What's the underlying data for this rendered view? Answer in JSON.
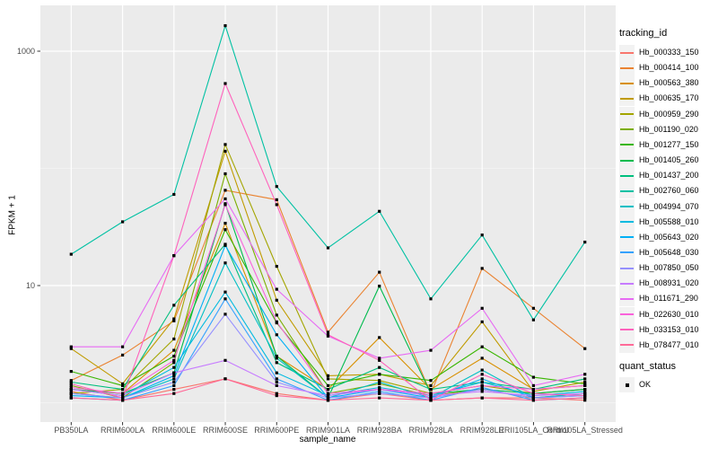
{
  "chart_data": {
    "type": "line",
    "title": "",
    "xlabel": "sample_name",
    "ylabel": "FPKM + 1",
    "y_scale": "log10",
    "y_breaks": [
      {
        "value": 10,
        "label": "10"
      },
      {
        "value": 1000,
        "label": "1000"
      }
    ],
    "y_minor_breaks": [
      1,
      100
    ],
    "ylim_log": [
      0.68,
      2370
    ],
    "grid": "on",
    "legend_position": "right",
    "categories": [
      "PB350LA",
      "RRIM600LA",
      "RRIM600LE",
      "RRIM600SE",
      "RRIM600PE",
      "RRIM901LA",
      "RRIM928BA",
      "RRIM928LA",
      "RRIM928LE",
      "RRII105LA_Control",
      "RRII105LA_Stressed"
    ],
    "series": [
      {
        "name": "Hb_000333_150",
        "color": "#F8766D",
        "values": [
          1.25,
          1.05,
          1.3,
          1.6,
          1.2,
          1.05,
          1.2,
          1.05,
          1.1,
          1.1,
          1.05
        ]
      },
      {
        "name": "Hb_000414_100",
        "color": "#EA8331",
        "values": [
          1.55,
          2.55,
          5.0,
          65,
          54,
          4.0,
          13,
          1.2,
          14,
          6.4,
          2.9
        ]
      },
      {
        "name": "Hb_000563_380",
        "color": "#D89000",
        "values": [
          1.3,
          1.2,
          2.8,
          34,
          2.5,
          1.3,
          3.6,
          1.3,
          2.4,
          1.3,
          1.4
        ]
      },
      {
        "name": "Hb_000635_170",
        "color": "#C09B00",
        "values": [
          2.9,
          1.45,
          5.2,
          140,
          7.5,
          1.7,
          1.75,
          1.4,
          4.9,
          1.25,
          1.5
        ]
      },
      {
        "name": "Hb_000959_290",
        "color": "#A3A500",
        "values": [
          1.2,
          1.3,
          3.5,
          160,
          14.6,
          1.6,
          1.55,
          1.2,
          1.4,
          1.2,
          1.3
        ]
      },
      {
        "name": "Hb_001190_020",
        "color": "#7CAE00",
        "values": [
          1.4,
          1.1,
          2.2,
          90,
          5.6,
          1.2,
          1.45,
          1.15,
          1.3,
          1.1,
          1.2
        ]
      },
      {
        "name": "Hb_001277_150",
        "color": "#39B600",
        "values": [
          1.85,
          1.4,
          2.5,
          30,
          4.8,
          1.4,
          1.75,
          1.55,
          3.0,
          1.65,
          1.45
        ]
      },
      {
        "name": "Hb_001405_260",
        "color": "#00BB4E",
        "values": [
          1.3,
          1.2,
          1.8,
          50,
          2.5,
          1.1,
          9.9,
          1.2,
          1.3,
          1.2,
          1.3
        ]
      },
      {
        "name": "Hb_001437_200",
        "color": "#00BF7D",
        "values": [
          1.5,
          1.3,
          6.8,
          22.5,
          2.2,
          1.3,
          2.0,
          1.3,
          1.5,
          1.3,
          1.6
        ]
      },
      {
        "name": "Hb_002760_060",
        "color": "#00C1A3",
        "values": [
          18.5,
          35,
          60,
          1650,
          70,
          21,
          43,
          7.7,
          27,
          5.1,
          23.5
        ]
      },
      {
        "name": "Hb_004994_070",
        "color": "#00BFC4",
        "values": [
          1.2,
          1.1,
          1.6,
          15.6,
          2.4,
          1.1,
          1.5,
          1.1,
          1.9,
          1.1,
          1.2
        ]
      },
      {
        "name": "Hb_005588_010",
        "color": "#00BAE0",
        "values": [
          1.3,
          1.15,
          2.0,
          8.8,
          1.8,
          1.15,
          1.35,
          1.15,
          1.5,
          1.15,
          1.25
        ]
      },
      {
        "name": "Hb_005643_020",
        "color": "#00B0F6",
        "values": [
          1.15,
          1.1,
          1.7,
          22,
          3.8,
          1.1,
          1.3,
          1.1,
          1.6,
          1.1,
          1.15
        ]
      },
      {
        "name": "Hb_005648_030",
        "color": "#35A2FF",
        "values": [
          1.1,
          1.05,
          1.4,
          7.7,
          1.6,
          1.05,
          1.25,
          1.05,
          1.35,
          1.05,
          1.1
        ]
      },
      {
        "name": "Hb_007850_050",
        "color": "#9590FF",
        "values": [
          1.2,
          1.1,
          1.5,
          5.7,
          1.5,
          1.1,
          1.2,
          1.1,
          1.3,
          1.1,
          1.15
        ]
      },
      {
        "name": "Hb_008931_020",
        "color": "#C77CFF",
        "values": [
          1.3,
          1.15,
          1.8,
          2.3,
          1.4,
          1.15,
          1.3,
          1.15,
          1.25,
          1.15,
          1.2
        ]
      },
      {
        "name": "Hb_011671_290",
        "color": "#E76BF3",
        "values": [
          3.0,
          3.0,
          18,
          55,
          9.3,
          3.7,
          2.4,
          2.8,
          6.4,
          1.4,
          1.75
        ]
      },
      {
        "name": "Hb_022630_010",
        "color": "#FA62DB",
        "values": [
          1.35,
          1.2,
          2.3,
          49,
          4.9,
          1.2,
          1.3,
          1.2,
          1.4,
          1.3,
          1.4
        ]
      },
      {
        "name": "Hb_033153_010",
        "color": "#FF62BC",
        "values": [
          1.45,
          1.1,
          18,
          530,
          49,
          3.8,
          2.3,
          1.05,
          1.75,
          1.2,
          1.15
        ]
      },
      {
        "name": "Hb_078477_010",
        "color": "#FF6A98",
        "values": [
          1.1,
          1.05,
          1.2,
          1.6,
          1.15,
          1.05,
          1.1,
          1.05,
          1.1,
          1.05,
          1.1
        ]
      }
    ],
    "legends": {
      "series_legend_title": "tracking_id",
      "point_legend_title": "quant_status",
      "point_legend_entry": "OK"
    },
    "colors": {
      "panel_background": "#EBEBEB",
      "grid_major": "#FFFFFF",
      "grid_minor": "#F5F5F5",
      "axis_text": "#4D4D4D",
      "tick_mark": "#333333",
      "point": "#000000",
      "legend_key_background": "#F2F2F2"
    }
  }
}
